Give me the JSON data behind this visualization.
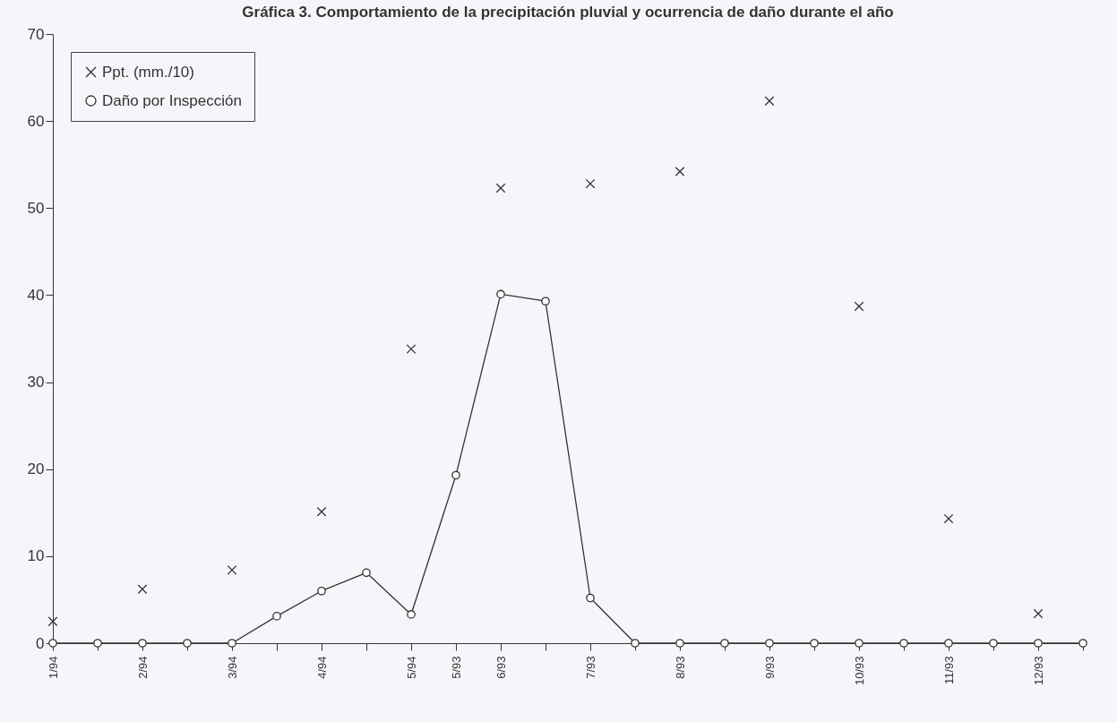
{
  "chart_data": {
    "type": "line",
    "title": "Gráfica 3. Comportamiento de la precipitación pluvial y ocurrencia de daño durante el año",
    "categories": [
      "1/94",
      null,
      "2/94",
      null,
      "3/94",
      null,
      "4/94",
      null,
      "5/94",
      "5/93",
      "6/93",
      null,
      "7/93",
      null,
      "8/93",
      null,
      "9/93",
      null,
      "10/93",
      null,
      "11/93",
      null,
      "12/93",
      null
    ],
    "series": [
      {
        "name": "Ppt. (mm./10)",
        "type": "scatter",
        "marker": "cross",
        "color": "#333333",
        "values": [
          2.5,
          null,
          6.2,
          null,
          8.4,
          null,
          15.1,
          null,
          33.8,
          null,
          52.3,
          null,
          52.8,
          null,
          54.2,
          null,
          62.3,
          null,
          38.7,
          null,
          14.3,
          null,
          3.4,
          null
        ]
      },
      {
        "name": "Daño por Inspección",
        "type": "line",
        "marker": "circle",
        "line_style": "solid",
        "color": "#333333",
        "values": [
          0,
          0,
          0,
          0,
          0,
          3.1,
          6,
          8.1,
          3.3,
          19.3,
          40.1,
          39.3,
          5.2,
          0,
          0,
          0,
          0,
          0,
          0,
          0,
          0,
          0,
          0,
          0
        ]
      }
    ],
    "ylim": [
      0,
      70
    ],
    "yticks": [
      0,
      10,
      20,
      30,
      40,
      50,
      60,
      70
    ],
    "grid": false,
    "legend": "top left"
  }
}
